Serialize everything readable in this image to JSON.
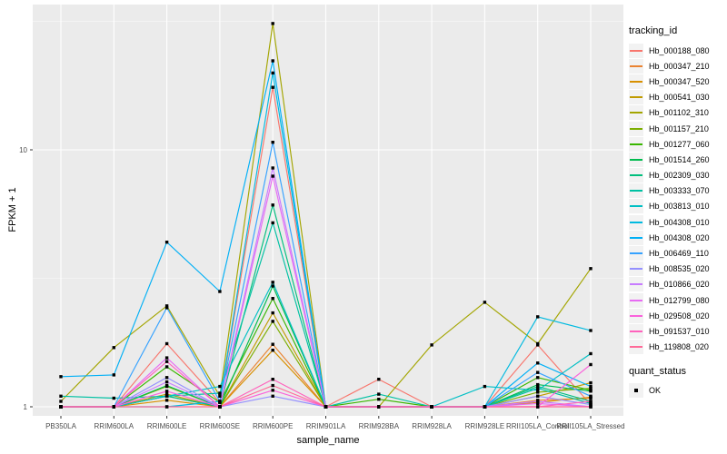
{
  "figure": {
    "background": "#FFFFFF",
    "panel_background": "#EBEBEB",
    "grid_color": "#FFFFFF",
    "tick_color": "#333333",
    "tick_label_color": "#4D4D4D",
    "point_color": "#000000",
    "legend_key_background": "#F2F2F2"
  },
  "chart_data": {
    "type": "line",
    "title": "",
    "xlabel": "sample_name",
    "ylabel": "FPKM + 1",
    "y_scale": "log10",
    "y_ticks": [
      {
        "label": "1",
        "value": 1
      },
      {
        "label": "10",
        "value": 10
      }
    ],
    "y_minor_values": [
      3.1623,
      31.623
    ],
    "ylim": [
      0.93,
      34
    ],
    "grid": true,
    "legend_position": "right",
    "point_marker": "black-square",
    "categories": [
      "PB350LA",
      "RRIM600LA",
      "RRIM600LE",
      "RRIM600SE",
      "RRIM600PE",
      "RRIM901LA",
      "RRIM928BA",
      "RRIM928LA",
      "RRIM928LE",
      "RRII105LA_Control",
      "RRII105LA_Stressed"
    ],
    "legend": {
      "title": "tracking_id"
    },
    "legend2": {
      "title": "quant_status",
      "items": [
        {
          "label": "OK",
          "marker": "black-square"
        }
      ]
    },
    "series": [
      {
        "name": "Hb_000188_080",
        "color": "#F8766D",
        "values": [
          1.0,
          1.0,
          1.76,
          1.04,
          17.5,
          1.0,
          1.28,
          1.0,
          1.0,
          1.74,
          1.02
        ]
      },
      {
        "name": "Hb_000347_210",
        "color": "#EA8331",
        "values": [
          1.0,
          1.0,
          1.1,
          1.0,
          1.75,
          1.0,
          1.0,
          1.0,
          1.0,
          1.06,
          1.08
        ]
      },
      {
        "name": "Hb_000347_520",
        "color": "#D89000",
        "values": [
          1.0,
          1.0,
          1.06,
          1.0,
          1.66,
          1.0,
          1.0,
          1.0,
          1.0,
          1.04,
          1.09
        ]
      },
      {
        "name": "Hb_000541_030",
        "color": "#C09B00",
        "values": [
          1.0,
          1.0,
          1.12,
          1.0,
          2.32,
          1.0,
          1.0,
          1.0,
          1.0,
          1.1,
          1.24
        ]
      },
      {
        "name": "Hb_001102_310",
        "color": "#A3A500",
        "values": [
          1.05,
          1.7,
          2.47,
          1.1,
          31.0,
          1.0,
          1.0,
          1.74,
          2.55,
          1.76,
          3.45
        ]
      },
      {
        "name": "Hb_001157_210",
        "color": "#7CAE00",
        "values": [
          1.0,
          1.0,
          1.2,
          1.0,
          2.15,
          1.0,
          1.0,
          1.0,
          1.0,
          1.14,
          1.18
        ]
      },
      {
        "name": "Hb_001277_060",
        "color": "#39B600",
        "values": [
          1.0,
          1.0,
          1.43,
          1.04,
          2.64,
          1.0,
          1.07,
          1.0,
          1.0,
          1.3,
          1.16
        ]
      },
      {
        "name": "Hb_001514_260",
        "color": "#00BB4E",
        "values": [
          1.0,
          1.0,
          1.21,
          1.0,
          2.95,
          1.0,
          1.0,
          1.0,
          1.0,
          1.22,
          1.15
        ]
      },
      {
        "name": "Hb_002309_030",
        "color": "#00BF7D",
        "values": [
          1.0,
          1.0,
          1.1,
          1.0,
          6.1,
          1.0,
          1.0,
          1.0,
          1.0,
          1.2,
          1.05
        ]
      },
      {
        "name": "Hb_003333_070",
        "color": "#00C1A3",
        "values": [
          1.1,
          1.08,
          1.1,
          1.13,
          5.2,
          1.0,
          1.12,
          1.0,
          1.0,
          1.18,
          1.03
        ]
      },
      {
        "name": "Hb_003813_010",
        "color": "#00BFC4",
        "values": [
          1.0,
          1.0,
          1.1,
          1.2,
          3.05,
          1.0,
          1.0,
          1.0,
          1.2,
          1.16,
          1.61
        ]
      },
      {
        "name": "Hb_004308_010",
        "color": "#00BAE0",
        "values": [
          1.0,
          1.0,
          1.0,
          1.05,
          19.9,
          1.0,
          1.0,
          1.0,
          1.0,
          2.24,
          1.98
        ]
      },
      {
        "name": "Hb_004308_020",
        "color": "#00B0F6",
        "values": [
          1.31,
          1.33,
          4.37,
          2.81,
          22.2,
          1.0,
          1.0,
          1.0,
          1.0,
          1.48,
          1.2
        ]
      },
      {
        "name": "Hb_006469_110",
        "color": "#35A2FF",
        "values": [
          1.0,
          1.0,
          2.43,
          1.05,
          10.7,
          1.0,
          1.0,
          1.0,
          1.0,
          1.36,
          1.1
        ]
      },
      {
        "name": "Hb_008535_020",
        "color": "#9590FF",
        "values": [
          1.0,
          1.0,
          1.3,
          1.0,
          1.1,
          1.0,
          1.0,
          1.0,
          1.0,
          1.1,
          1.02
        ]
      },
      {
        "name": "Hb_010866_020",
        "color": "#C77CFF",
        "values": [
          1.0,
          1.0,
          1.25,
          1.0,
          8.5,
          1.0,
          1.0,
          1.0,
          1.0,
          1.05,
          1.0
        ]
      },
      {
        "name": "Hb_012799_080",
        "color": "#E76BF3",
        "values": [
          1.0,
          1.0,
          1.55,
          1.0,
          7.9,
          1.0,
          1.0,
          1.0,
          1.0,
          1.03,
          1.0
        ]
      },
      {
        "name": "Hb_029508_020",
        "color": "#FA62DB",
        "values": [
          1.0,
          1.0,
          1.15,
          1.0,
          1.16,
          1.0,
          1.0,
          1.0,
          1.0,
          1.0,
          1.46
        ]
      },
      {
        "name": "Hb_091537_010",
        "color": "#FF62BC",
        "values": [
          1.0,
          1.0,
          1.5,
          1.0,
          1.28,
          1.0,
          1.0,
          1.0,
          1.0,
          1.0,
          1.05
        ]
      },
      {
        "name": "Hb_119808_020",
        "color": "#FF6A98",
        "values": [
          1.0,
          1.0,
          1.0,
          1.0,
          1.21,
          1.0,
          1.0,
          1.0,
          1.0,
          1.0,
          1.0
        ]
      }
    ]
  }
}
